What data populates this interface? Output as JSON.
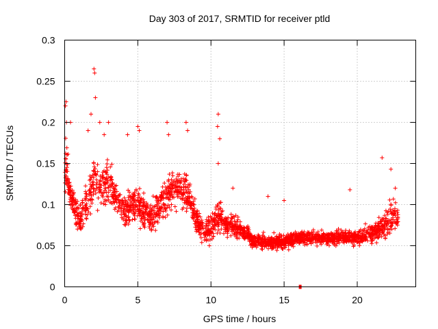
{
  "chart_data": {
    "type": "scatter",
    "title": "Day 303 of 2017, SRMTID for receiver ptld",
    "xlabel": "GPS time / hours",
    "ylabel": "SRMTID / TECUs",
    "xlim": [
      0,
      24
    ],
    "ylim": [
      0,
      0.3
    ],
    "xticks": [
      0,
      5,
      10,
      15,
      20
    ],
    "xtick_labels": [
      "0",
      "5",
      "10",
      "15",
      "20"
    ],
    "yticks": [
      0,
      0.05,
      0.1,
      0.15,
      0.2,
      0.25,
      0.3
    ],
    "ytick_labels": [
      "0",
      "0.05",
      "0.1",
      "0.15",
      "0.2",
      "0.25",
      "0.3"
    ],
    "grid": true,
    "marker": "+",
    "color": "#ff0000",
    "series": [
      {
        "name": "SRMTID",
        "profile_x": [
          0,
          0.15,
          0.3,
          0.6,
          1.0,
          1.5,
          2.0,
          2.5,
          3.0,
          3.5,
          4.0,
          4.5,
          5.0,
          5.5,
          6.0,
          6.5,
          7.0,
          7.5,
          8.0,
          8.5,
          9.0,
          9.5,
          10.0,
          10.5,
          11.0,
          11.5,
          12.0,
          13.0,
          14.0,
          15.0,
          16.0,
          17.0,
          18.0,
          19.0,
          20.0,
          21.0,
          21.5,
          22.0,
          22.5,
          22.8
        ],
        "profile_mean": [
          0.14,
          0.15,
          0.12,
          0.1,
          0.08,
          0.1,
          0.13,
          0.12,
          0.13,
          0.11,
          0.09,
          0.1,
          0.1,
          0.09,
          0.085,
          0.1,
          0.11,
          0.12,
          0.115,
          0.11,
          0.08,
          0.07,
          0.07,
          0.09,
          0.075,
          0.075,
          0.07,
          0.055,
          0.055,
          0.055,
          0.06,
          0.06,
          0.06,
          0.06,
          0.06,
          0.065,
          0.07,
          0.075,
          0.09,
          0.08
        ],
        "profile_spread": [
          0.05,
          0.05,
          0.035,
          0.03,
          0.03,
          0.035,
          0.05,
          0.04,
          0.045,
          0.035,
          0.03,
          0.035,
          0.04,
          0.03,
          0.03,
          0.035,
          0.04,
          0.04,
          0.04,
          0.035,
          0.025,
          0.02,
          0.03,
          0.04,
          0.02,
          0.02,
          0.018,
          0.015,
          0.015,
          0.015,
          0.015,
          0.015,
          0.015,
          0.015,
          0.015,
          0.018,
          0.025,
          0.03,
          0.03,
          0.03
        ],
        "highlights": [
          [
            0.05,
            0.22
          ],
          [
            0.1,
            0.225
          ],
          [
            0.12,
            0.2
          ],
          [
            0.4,
            0.2
          ],
          [
            2.0,
            0.265
          ],
          [
            2.05,
            0.26
          ],
          [
            2.1,
            0.23
          ],
          [
            1.6,
            0.19
          ],
          [
            1.8,
            0.21
          ],
          [
            2.4,
            0.2
          ],
          [
            2.7,
            0.185
          ],
          [
            3.0,
            0.2
          ],
          [
            4.3,
            0.185
          ],
          [
            5.0,
            0.195
          ],
          [
            5.1,
            0.19
          ],
          [
            7.0,
            0.2
          ],
          [
            7.1,
            0.185
          ],
          [
            8.3,
            0.2
          ],
          [
            8.4,
            0.19
          ],
          [
            10.5,
            0.21
          ],
          [
            10.45,
            0.195
          ],
          [
            10.6,
            0.18
          ],
          [
            10.5,
            0.15
          ],
          [
            11.5,
            0.12
          ],
          [
            13.9,
            0.11
          ],
          [
            15.0,
            0.105
          ],
          [
            19.5,
            0.118
          ],
          [
            21.7,
            0.157
          ],
          [
            22.3,
            0.143
          ],
          [
            22.6,
            0.12
          ]
        ],
        "zero_points": [
          [
            16.1,
            0
          ]
        ]
      }
    ]
  }
}
